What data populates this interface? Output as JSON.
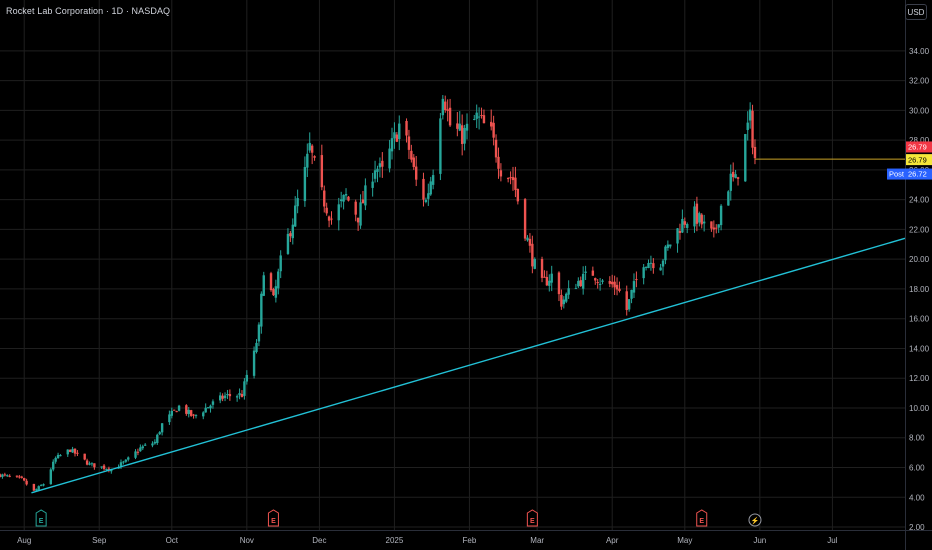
{
  "header": {
    "title": "Rocket Lab Corporation · 1D · NASDAQ",
    "currency_button": "USD"
  },
  "colors": {
    "background": "#000000",
    "grid": "#1f1f1f",
    "up": "#26a69a",
    "down": "#ef5350",
    "trendline": "#22c1d6",
    "post_line": "#c9a227",
    "post_badge": "#2962ff",
    "close_badge": "#f23645",
    "current_badge": "#f5e63a"
  },
  "chart_data": {
    "type": "candlestick",
    "title": "Rocket Lab Corporation · 1D · NASDAQ",
    "xlabel": "",
    "ylabel": "",
    "currency": "USD",
    "ylim": [
      1.8,
      35.4
    ],
    "y_ticks": [
      2,
      4,
      6,
      8,
      10,
      12,
      14,
      16,
      18,
      20,
      22,
      24,
      26,
      28,
      30,
      32,
      34
    ],
    "y_tick_labels": [
      "2.00",
      "4.00",
      "6.00",
      "8.00",
      "10.00",
      "12.00",
      "14.00",
      "16.00",
      "18.00",
      "20.00",
      "22.00",
      "24.00",
      "26.00",
      "28.00",
      "30.00",
      "32.00",
      "34.00"
    ],
    "x_range": [
      "2024-07-22",
      "2025-07-31"
    ],
    "x_ticks": [
      {
        "label": "Aug",
        "date": "2024-08-01"
      },
      {
        "label": "Sep",
        "date": "2024-09-01"
      },
      {
        "label": "Oct",
        "date": "2024-10-01"
      },
      {
        "label": "Nov",
        "date": "2024-11-01"
      },
      {
        "label": "Dec",
        "date": "2024-12-01"
      },
      {
        "label": "2025",
        "date": "2025-01-01"
      },
      {
        "label": "Feb",
        "date": "2025-02-01"
      },
      {
        "label": "Mar",
        "date": "2025-03-01"
      },
      {
        "label": "Apr",
        "date": "2025-04-01"
      },
      {
        "label": "May",
        "date": "2025-05-01"
      },
      {
        "label": "Jun",
        "date": "2025-06-01"
      },
      {
        "label": "Jul",
        "date": "2025-07-01"
      }
    ],
    "grid": true,
    "anchors": [
      [
        "2024-07-22",
        5.5
      ],
      [
        "2024-07-31",
        5.2
      ],
      [
        "2024-08-05",
        4.4
      ],
      [
        "2024-08-09",
        4.9
      ],
      [
        "2024-08-14",
        6.6
      ],
      [
        "2024-08-20",
        7.2
      ],
      [
        "2024-08-28",
        6.2
      ],
      [
        "2024-09-06",
        5.9
      ],
      [
        "2024-09-12",
        6.4
      ],
      [
        "2024-09-18",
        7.3
      ],
      [
        "2024-09-24",
        7.7
      ],
      [
        "2024-09-27",
        8.9
      ],
      [
        "2024-10-04",
        10.1
      ],
      [
        "2024-10-10",
        9.4
      ],
      [
        "2024-10-16",
        10.1
      ],
      [
        "2024-10-23",
        10.8
      ],
      [
        "2024-10-30",
        10.9
      ],
      [
        "2024-11-01",
        12.2
      ],
      [
        "2024-11-04",
        13.6
      ],
      [
        "2024-11-06",
        15.3
      ],
      [
        "2024-11-08",
        19.4
      ],
      [
        "2024-11-12",
        17.2
      ],
      [
        "2024-11-15",
        19.8
      ],
      [
        "2024-11-20",
        22.6
      ],
      [
        "2024-11-25",
        25.8
      ],
      [
        "2024-11-27",
        27.5
      ],
      [
        "2024-12-02",
        24.3
      ],
      [
        "2024-12-06",
        22.7
      ],
      [
        "2024-12-12",
        24.2
      ],
      [
        "2024-12-17",
        22.9
      ],
      [
        "2024-12-24",
        26.3
      ],
      [
        "2024-12-27",
        25.8
      ],
      [
        "2025-01-03",
        29.0
      ],
      [
        "2025-01-07",
        27.4
      ],
      [
        "2025-01-10",
        25.2
      ],
      [
        "2025-01-14",
        23.9
      ],
      [
        "2025-01-17",
        26.1
      ],
      [
        "2025-01-21",
        31.4
      ],
      [
        "2025-01-24",
        29.0
      ],
      [
        "2025-01-29",
        28.3
      ],
      [
        "2025-02-04",
        29.5
      ],
      [
        "2025-02-10",
        28.4
      ],
      [
        "2025-02-14",
        26.1
      ],
      [
        "2025-02-19",
        25.4
      ],
      [
        "2025-02-24",
        21.9
      ],
      [
        "2025-02-27",
        20.0
      ],
      [
        "2025-03-03",
        18.3
      ],
      [
        "2025-03-07",
        18.9
      ],
      [
        "2025-03-11",
        17.1
      ],
      [
        "2025-03-17",
        18.4
      ],
      [
        "2025-03-24",
        19.1
      ],
      [
        "2025-03-28",
        18.4
      ],
      [
        "2025-04-03",
        18.2
      ],
      [
        "2025-04-07",
        16.6
      ],
      [
        "2025-04-09",
        17.7
      ],
      [
        "2025-04-14",
        19.9
      ],
      [
        "2025-04-21",
        19.8
      ],
      [
        "2025-04-25",
        21.1
      ],
      [
        "2025-04-30",
        22.5
      ],
      [
        "2025-05-05",
        23.0
      ],
      [
        "2025-05-09",
        22.2
      ],
      [
        "2025-05-13",
        21.5
      ],
      [
        "2025-05-16",
        23.6
      ],
      [
        "2025-05-20",
        25.4
      ],
      [
        "2025-05-22",
        25.2
      ],
      [
        "2025-05-27",
        28.9
      ],
      [
        "2025-05-28",
        29.4
      ],
      [
        "2025-05-30",
        26.8
      ]
    ],
    "trendline": {
      "start": [
        "2024-08-04",
        4.3
      ],
      "end": [
        "2025-07-31",
        21.4
      ]
    },
    "last_price": 26.79,
    "current_price_label": "26.79",
    "close_label": "26.79",
    "post_label": "Post",
    "post_price": 26.72,
    "post_price_label": "26.72",
    "events": [
      {
        "date": "2024-08-08",
        "type": "earnings",
        "label": "E",
        "color": "#26a69a"
      },
      {
        "date": "2024-11-12",
        "type": "earnings",
        "label": "E",
        "color": "#ef5350"
      },
      {
        "date": "2025-02-27",
        "type": "earnings",
        "label": "E",
        "color": "#ef5350"
      },
      {
        "date": "2025-05-08",
        "type": "earnings",
        "label": "E",
        "color": "#ef5350"
      },
      {
        "date": "2025-05-30",
        "type": "dividend-split",
        "label": "⚡",
        "color": "#ef5350"
      }
    ]
  }
}
